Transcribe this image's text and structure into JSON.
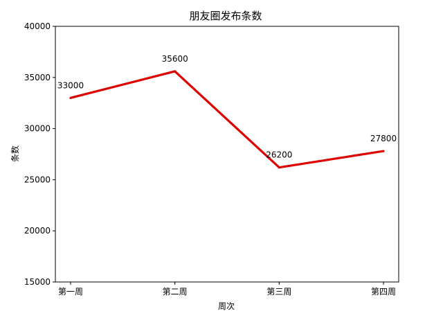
{
  "chart_data": {
    "type": "line",
    "title": "朋友圈发布条数",
    "xlabel": "周次",
    "ylabel": "条数",
    "categories": [
      "第一周",
      "第二周",
      "第三周",
      "第四周"
    ],
    "series": [
      {
        "values": [
          33000,
          35600,
          26200,
          27800
        ],
        "color": "#dd0000"
      }
    ],
    "data_labels": [
      "33000",
      "35600",
      "26200",
      "27800"
    ],
    "ylim": [
      15000,
      40000
    ],
    "yticks": [
      15000,
      20000,
      25000,
      30000,
      35000,
      40000
    ],
    "ytick_labels": [
      "15000",
      "20000",
      "25000",
      "30000",
      "35000",
      "40000"
    ],
    "grid": false,
    "legend": "none"
  }
}
